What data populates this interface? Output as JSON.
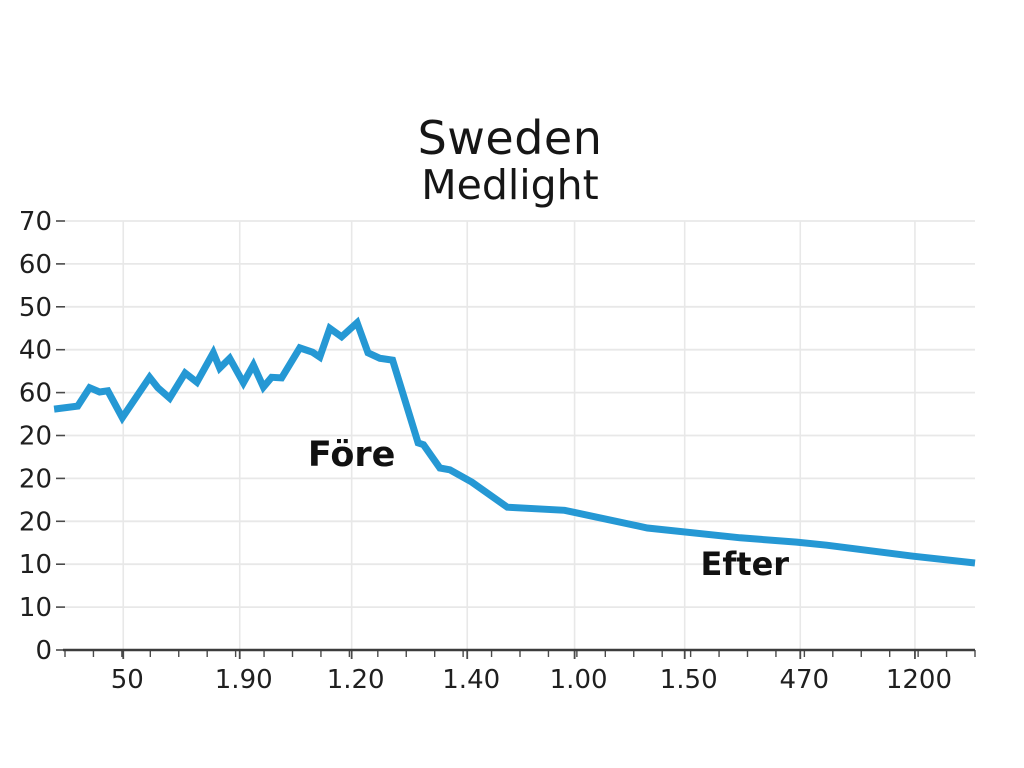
{
  "page": {
    "background": "#ffffff"
  },
  "chart_data": {
    "type": "line",
    "title": "Sweden",
    "subtitle": "Medlight",
    "xlabel": "",
    "ylabel": "",
    "ylim": [
      0,
      70
    ],
    "grid": true,
    "legend_position": "none",
    "colors": {
      "line": "#2598d4",
      "grid": "#e8e8e8",
      "axis": "#3c3c3c",
      "tick": "#4a4a4a",
      "text": "#1f1f1f"
    },
    "y_tick_labels": [
      "70",
      "60",
      "50",
      "40",
      "60",
      "20",
      "20",
      "20",
      "10",
      "10",
      "0"
    ],
    "x_ticks": [
      {
        "label": "50",
        "pos": 0.064
      },
      {
        "label": "1.90",
        "pos": 0.192
      },
      {
        "label": "1.20",
        "pos": 0.315
      },
      {
        "label": "1.40",
        "pos": 0.442
      },
      {
        "label": "1.00",
        "pos": 0.56
      },
      {
        "label": "1.50",
        "pos": 0.681
      },
      {
        "label": "470",
        "pos": 0.808
      },
      {
        "label": "1200",
        "pos": 0.934
      }
    ],
    "minor_tick_segments": 32,
    "annotations": [
      {
        "text": "Före",
        "x": 0.315,
        "v": 31.8
      },
      {
        "text": "Efter",
        "x": 0.747,
        "v": 14.0
      }
    ],
    "series": [
      {
        "name": "Medlight",
        "points": [
          [
            -0.012,
            39.3
          ],
          [
            0.014,
            39.8
          ],
          [
            0.027,
            42.8
          ],
          [
            0.038,
            42.1
          ],
          [
            0.047,
            42.3
          ],
          [
            0.063,
            37.9
          ],
          [
            0.093,
            44.5
          ],
          [
            0.102,
            42.8
          ],
          [
            0.115,
            41.1
          ],
          [
            0.132,
            45.2
          ],
          [
            0.145,
            43.7
          ],
          [
            0.163,
            48.5
          ],
          [
            0.17,
            46.0
          ],
          [
            0.181,
            47.6
          ],
          [
            0.196,
            43.6
          ],
          [
            0.207,
            46.5
          ],
          [
            0.218,
            42.9
          ],
          [
            0.227,
            44.5
          ],
          [
            0.238,
            44.4
          ],
          [
            0.258,
            49.3
          ],
          [
            0.272,
            48.6
          ],
          [
            0.28,
            47.8
          ],
          [
            0.291,
            52.5
          ],
          [
            0.304,
            51.1
          ],
          [
            0.321,
            53.4
          ],
          [
            0.333,
            48.5
          ],
          [
            0.346,
            47.6
          ],
          [
            0.36,
            47.3
          ],
          [
            0.388,
            33.8
          ],
          [
            0.394,
            33.5
          ],
          [
            0.412,
            29.7
          ],
          [
            0.423,
            29.4
          ],
          [
            0.447,
            27.4
          ],
          [
            0.486,
            23.3
          ],
          [
            0.549,
            22.8
          ],
          [
            0.64,
            19.9
          ],
          [
            0.742,
            18.3
          ],
          [
            0.804,
            17.6
          ],
          [
            0.837,
            17.1
          ],
          [
            0.932,
            15.3
          ],
          [
            1.0,
            14.2
          ]
        ]
      }
    ]
  }
}
